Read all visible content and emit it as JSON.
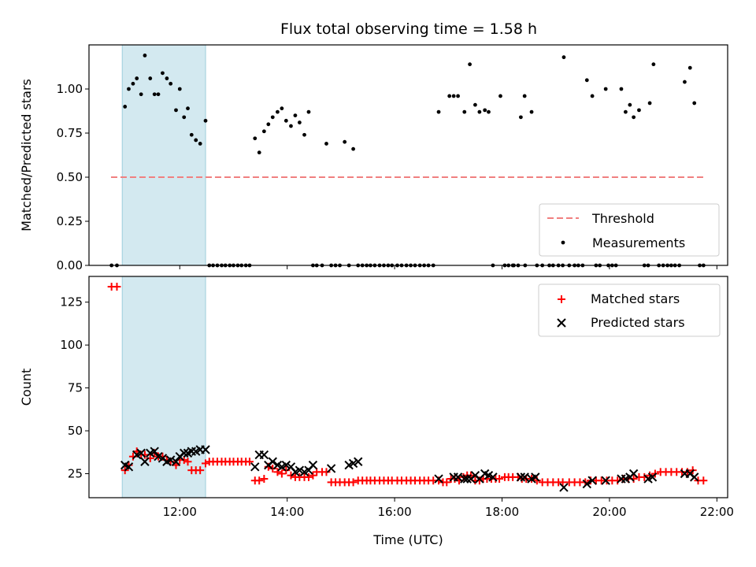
{
  "chart_data": [
    {
      "type": "scatter",
      "title": "Flux total observing time = 1.58 h",
      "xlabel": "",
      "ylabel": "Matched/Predicted stars",
      "xlim": [
        10.31,
        22.2
      ],
      "ylim": [
        0.0,
        1.25
      ],
      "yticks": [
        0.0,
        0.25,
        0.5,
        0.75,
        1.0
      ],
      "ytick_labels": [
        "0.00",
        "0.25",
        "0.50",
        "0.75",
        "1.00"
      ],
      "highlight_span": {
        "x": [
          10.93,
          12.48
        ],
        "color": "#d3e9f0"
      },
      "legend": {
        "placement": "lower right"
      },
      "series": [
        {
          "name": "Threshold",
          "kind": "line",
          "style": "dashed",
          "color": "#f08080",
          "x": [
            10.72,
            21.78
          ],
          "y": [
            0.5,
            0.5
          ]
        },
        {
          "name": "Measurements",
          "kind": "scatter",
          "color": "#000000",
          "x": [
            10.73,
            10.83,
            10.98,
            11.05,
            11.13,
            11.2,
            11.28,
            11.35,
            11.45,
            11.53,
            11.6,
            11.68,
            11.76,
            11.83,
            11.93,
            12.0,
            12.08,
            12.15,
            12.22,
            12.3,
            12.38,
            12.48,
            12.55,
            12.62,
            12.7,
            12.78,
            12.85,
            12.93,
            13.0,
            13.08,
            13.15,
            13.23,
            13.3,
            13.4,
            13.48,
            13.57,
            13.65,
            13.73,
            13.82,
            13.9,
            13.98,
            14.07,
            14.15,
            14.23,
            14.32,
            14.4,
            14.48,
            14.55,
            14.65,
            14.73,
            14.82,
            14.9,
            14.98,
            15.07,
            15.15,
            15.23,
            15.32,
            15.4,
            15.48,
            15.55,
            15.63,
            15.72,
            15.8,
            15.88,
            15.95,
            16.05,
            16.13,
            16.22,
            16.3,
            16.38,
            16.47,
            16.55,
            16.63,
            16.72,
            16.82,
            17.02,
            17.1,
            17.18,
            17.3,
            17.4,
            17.5,
            17.58,
            17.68,
            17.75,
            17.83,
            17.97,
            18.12,
            18.22,
            18.35,
            18.42,
            18.55,
            18.05,
            18.2,
            18.3,
            18.43,
            18.65,
            18.75,
            18.88,
            18.95,
            19.05,
            19.13,
            19.25,
            19.35,
            19.42,
            19.5,
            19.15,
            19.58,
            19.68,
            19.93,
            20.22,
            20.3,
            20.38,
            20.45,
            20.55,
            20.75,
            20.82,
            21.4,
            21.5,
            21.58,
            19.75,
            19.82,
            19.98,
            20.05,
            20.12,
            20.65,
            20.72,
            20.92,
            21.0,
            21.08,
            21.15,
            21.22,
            21.3,
            21.68,
            21.75
          ],
          "y": [
            0.0,
            0.0,
            0.9,
            1.0,
            1.03,
            1.06,
            0.97,
            1.19,
            1.06,
            0.97,
            0.97,
            1.09,
            1.06,
            1.03,
            0.88,
            1.0,
            0.84,
            0.89,
            0.74,
            0.71,
            0.69,
            0.82,
            0.0,
            0.0,
            0.0,
            0.0,
            0.0,
            0.0,
            0.0,
            0.0,
            0.0,
            0.0,
            0.0,
            0.72,
            0.64,
            0.76,
            0.8,
            0.84,
            0.87,
            0.89,
            0.82,
            0.79,
            0.85,
            0.81,
            0.74,
            0.87,
            0.0,
            0.0,
            0.0,
            0.69,
            0.0,
            0.0,
            0.0,
            0.7,
            0.0,
            0.66,
            0.0,
            0.0,
            0.0,
            0.0,
            0.0,
            0.0,
            0.0,
            0.0,
            0.0,
            0.0,
            0.0,
            0.0,
            0.0,
            0.0,
            0.0,
            0.0,
            0.0,
            0.0,
            0.87,
            0.96,
            0.96,
            0.96,
            0.87,
            1.14,
            0.91,
            0.87,
            0.88,
            0.87,
            0.0,
            0.96,
            0.0,
            0.0,
            0.84,
            0.96,
            0.87,
            0.0,
            0.0,
            0.0,
            0.0,
            0.0,
            0.0,
            0.0,
            0.0,
            0.0,
            0.0,
            0.0,
            0.0,
            0.0,
            0.0,
            1.18,
            1.05,
            0.96,
            1.0,
            1.0,
            0.87,
            0.91,
            0.84,
            0.88,
            0.92,
            1.14,
            1.04,
            1.12,
            0.92,
            0.0,
            0.0,
            0.0,
            0.0,
            0.0,
            0.0,
            0.0,
            0.0,
            0.0,
            0.0,
            0.0,
            0.0,
            0.0,
            0.0,
            0.0
          ]
        }
      ]
    },
    {
      "type": "scatter",
      "title": "",
      "xlabel": "Time (UTC)",
      "ylabel": "Count",
      "xlim": [
        10.31,
        22.2
      ],
      "ylim": [
        11,
        140
      ],
      "xticks": [
        12,
        14,
        16,
        18,
        20,
        22
      ],
      "xtick_labels": [
        "12:00",
        "14:00",
        "16:00",
        "18:00",
        "20:00",
        "22:00"
      ],
      "yticks": [
        25,
        50,
        75,
        100,
        125
      ],
      "ytick_labels": [
        "25",
        "50",
        "75",
        "100",
        "125"
      ],
      "highlight_span": {
        "x": [
          10.93,
          12.48
        ],
        "color": "#d3e9f0"
      },
      "legend": {
        "placement": "upper right"
      },
      "series": [
        {
          "name": "Matched stars",
          "kind": "scatter",
          "marker": "plus",
          "color": "#ff0000",
          "x": [
            10.73,
            10.83,
            10.98,
            11.05,
            11.13,
            11.2,
            11.28,
            11.35,
            11.45,
            11.53,
            11.6,
            11.68,
            11.76,
            11.83,
            11.93,
            12.0,
            12.08,
            12.15,
            12.22,
            12.3,
            12.38,
            12.48,
            12.55,
            12.62,
            12.7,
            12.78,
            12.85,
            12.93,
            13.0,
            13.08,
            13.15,
            13.23,
            13.3,
            13.4,
            13.48,
            13.57,
            13.65,
            13.73,
            13.82,
            13.9,
            13.98,
            14.07,
            14.15,
            14.23,
            14.32,
            14.4,
            14.48,
            14.55,
            14.65,
            14.73,
            14.82,
            14.9,
            14.98,
            15.07,
            15.15,
            15.23,
            15.32,
            15.4,
            15.48,
            15.55,
            15.63,
            15.72,
            15.8,
            15.88,
            15.95,
            16.05,
            16.13,
            16.22,
            16.3,
            16.38,
            16.47,
            16.55,
            16.63,
            16.72,
            16.82,
            16.9,
            16.97,
            17.05,
            17.12,
            17.2,
            17.28,
            17.35,
            17.42,
            17.5,
            17.58,
            17.65,
            17.72,
            17.8,
            17.88,
            17.95,
            18.05,
            18.12,
            18.2,
            18.3,
            18.37,
            18.45,
            18.55,
            18.65,
            18.75,
            18.85,
            18.95,
            19.05,
            19.13,
            19.25,
            19.35,
            19.45,
            19.55,
            19.65,
            19.75,
            19.85,
            19.95,
            20.05,
            20.15,
            20.25,
            20.35,
            20.45,
            20.55,
            20.65,
            20.75,
            20.85,
            20.95,
            21.05,
            21.15,
            21.25,
            21.35,
            21.45,
            21.55,
            21.65,
            21.75
          ],
          "y": [
            134,
            134,
            27,
            30,
            35,
            38,
            36,
            36,
            34,
            37,
            35,
            35,
            33,
            32,
            30,
            33,
            33,
            32,
            27,
            27,
            27,
            31,
            32,
            32,
            32,
            32,
            32,
            32,
            32,
            32,
            32,
            32,
            32,
            21,
            21,
            22,
            29,
            28,
            26,
            25,
            27,
            24,
            23,
            23,
            23,
            23,
            24,
            26,
            26,
            26,
            20,
            20,
            20,
            20,
            20,
            20,
            21,
            21,
            21,
            21,
            21,
            21,
            21,
            21,
            21,
            21,
            21,
            21,
            21,
            21,
            21,
            21,
            21,
            21,
            21,
            20,
            20,
            22,
            22,
            21,
            23,
            24,
            24,
            21,
            21,
            22,
            22,
            22,
            22,
            22,
            23,
            23,
            23,
            23,
            22,
            22,
            22,
            21,
            20,
            20,
            20,
            20,
            20,
            20,
            20,
            20,
            20,
            21,
            21,
            21,
            21,
            21,
            21,
            22,
            22,
            22,
            23,
            23,
            24,
            25,
            26,
            26,
            26,
            26,
            26,
            26,
            27,
            21,
            21
          ]
        },
        {
          "name": "Predicted stars",
          "kind": "scatter",
          "marker": "x",
          "color": "#000000",
          "x": [
            10.98,
            11.05,
            11.2,
            11.28,
            11.35,
            11.45,
            11.53,
            11.6,
            11.68,
            11.76,
            11.83,
            11.93,
            12.0,
            12.08,
            12.15,
            12.22,
            12.3,
            12.38,
            12.48,
            13.4,
            13.48,
            13.57,
            13.65,
            13.73,
            13.82,
            13.9,
            13.98,
            14.07,
            14.15,
            14.23,
            14.32,
            14.4,
            14.48,
            14.82,
            15.15,
            15.23,
            15.32,
            16.82,
            17.1,
            17.18,
            17.3,
            17.35,
            17.42,
            17.5,
            17.58,
            17.68,
            17.75,
            17.83,
            18.35,
            18.42,
            18.55,
            18.62,
            19.15,
            19.58,
            19.68,
            19.93,
            20.22,
            20.3,
            20.38,
            20.45,
            20.72,
            20.8,
            21.4,
            21.5,
            21.58
          ],
          "y": [
            30,
            29,
            36,
            37,
            32,
            37,
            38,
            35,
            34,
            32,
            33,
            32,
            35,
            37,
            37,
            38,
            38,
            39,
            39,
            29,
            36,
            36,
            30,
            32,
            30,
            29,
            30,
            29,
            26,
            27,
            26,
            27,
            30,
            28,
            30,
            31,
            32,
            22,
            23,
            23,
            22,
            22,
            22,
            24,
            22,
            25,
            24,
            23,
            23,
            23,
            22,
            23,
            17,
            19,
            21,
            21,
            22,
            22,
            23,
            25,
            22,
            23,
            25,
            25,
            23
          ]
        }
      ]
    }
  ]
}
